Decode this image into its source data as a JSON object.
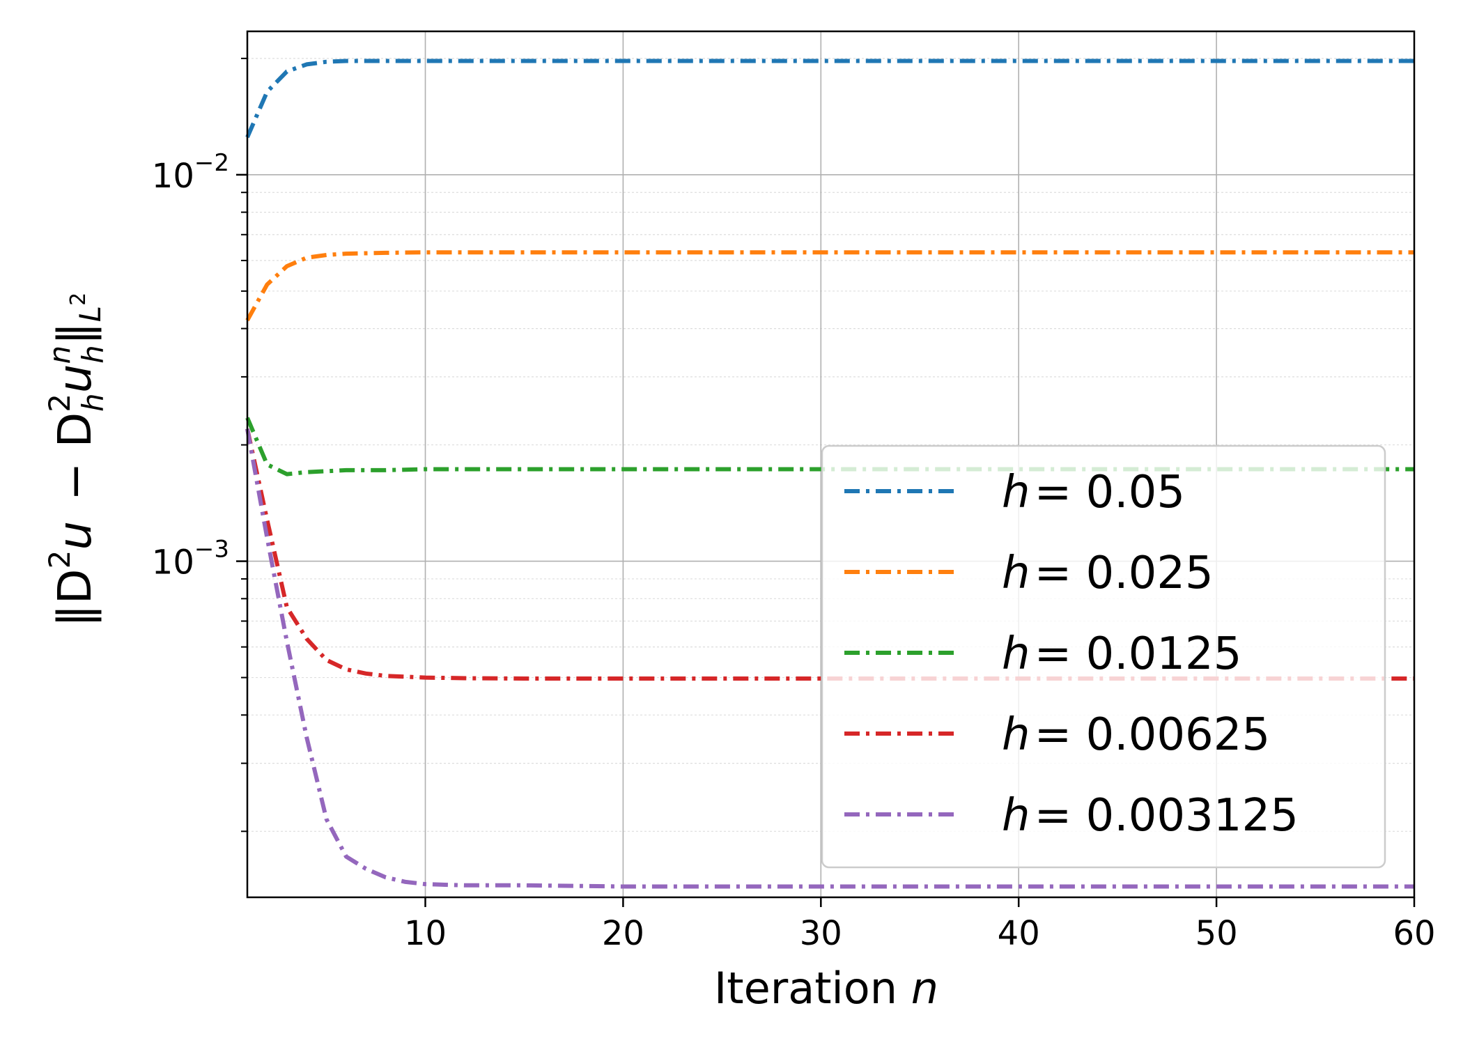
{
  "chart_data": {
    "type": "line",
    "title": "",
    "xlabel_prefix": "Iteration ",
    "xlabel_var": "n",
    "ylabel": "‖D²u − D²ₕuₕⁿ‖_{L²}",
    "ylabel_parts": {
      "open": "‖D",
      "sup1": "2",
      "mid": "u − D",
      "sub_h1": "h",
      "sup2": "2",
      "u": "u",
      "sub_h2": "h",
      "sup_n": "n",
      "close": "‖",
      "sub_L": "L",
      "sup_L": "2"
    },
    "xlim": [
      1,
      60
    ],
    "ylim": [
      0.000135,
      0.0235
    ],
    "yscale": "log",
    "grid": true,
    "legend_position": "lower-right",
    "line_style": "dash-dot",
    "x_ticks": [
      10,
      20,
      30,
      40,
      50,
      60
    ],
    "x_tick_labels": [
      "10",
      "20",
      "30",
      "40",
      "50",
      "60"
    ],
    "y_ticks": [
      0.001,
      0.01
    ],
    "y_tick_base": "10",
    "y_tick_exponents": [
      "−3",
      "−2"
    ],
    "series": [
      {
        "name_var": "h",
        "name_value": "= 0.05",
        "color": "#1f77b4",
        "x": [
          1,
          2,
          3,
          4,
          5,
          6,
          8,
          10,
          15,
          20,
          30,
          40,
          50,
          60
        ],
        "y": [
          0.0125,
          0.0164,
          0.0185,
          0.0193,
          0.0196,
          0.0197,
          0.0197,
          0.0197,
          0.0197,
          0.0197,
          0.0197,
          0.0197,
          0.0197,
          0.0197
        ]
      },
      {
        "name_var": "h",
        "name_value": "= 0.025",
        "color": "#ff7f0e",
        "x": [
          1,
          2,
          3,
          4,
          5,
          6,
          8,
          10,
          15,
          20,
          30,
          40,
          50,
          60
        ],
        "y": [
          0.0042,
          0.0052,
          0.0058,
          0.0061,
          0.0062,
          0.00625,
          0.00628,
          0.0063,
          0.0063,
          0.0063,
          0.0063,
          0.0063,
          0.0063,
          0.0063
        ]
      },
      {
        "name_var": "h",
        "name_value": "= 0.0125",
        "color": "#2ca02c",
        "x": [
          1,
          2,
          3,
          4,
          5,
          6,
          8,
          10,
          15,
          20,
          30,
          40,
          50,
          60
        ],
        "y": [
          0.00235,
          0.00178,
          0.00168,
          0.0017,
          0.00171,
          0.00172,
          0.00172,
          0.00173,
          0.00173,
          0.00173,
          0.00173,
          0.00173,
          0.00173,
          0.00173
        ]
      },
      {
        "name_var": "h",
        "name_value": "= 0.00625",
        "color": "#d62728",
        "x": [
          1,
          2,
          3,
          4,
          5,
          6,
          7,
          8,
          10,
          12,
          15,
          20,
          30,
          40,
          50,
          60
        ],
        "y": [
          0.0022,
          0.00128,
          0.00076,
          0.00063,
          0.000555,
          0.000525,
          0.000512,
          0.000505,
          0.0005,
          0.000498,
          0.000497,
          0.000497,
          0.000497,
          0.000497,
          0.000497,
          0.000497
        ]
      },
      {
        "name_var": "h",
        "name_value": "= 0.003125",
        "color": "#9467bd",
        "x": [
          1,
          2,
          3,
          4,
          5,
          6,
          7,
          8,
          9,
          10,
          12,
          15,
          20,
          30,
          40,
          50,
          60
        ],
        "y": [
          0.0022,
          0.00115,
          0.00062,
          0.00035,
          0.000215,
          0.000172,
          0.00016,
          0.000152,
          0.000148,
          0.000146,
          0.000145,
          0.000145,
          0.000144,
          0.000144,
          0.000144,
          0.000144,
          0.000144
        ]
      }
    ]
  }
}
